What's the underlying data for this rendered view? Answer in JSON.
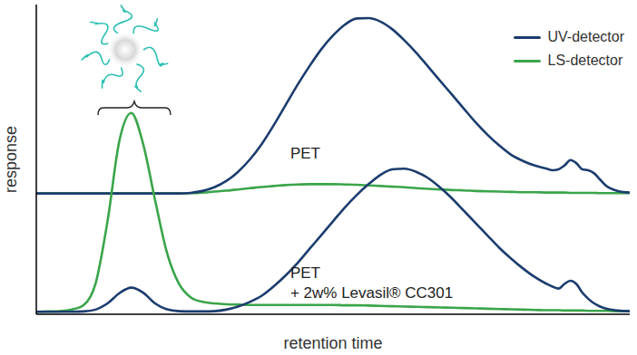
{
  "chart_data": {
    "type": "line",
    "x_label": "retention time",
    "y_label": "response",
    "xlim": [
      0,
      100
    ],
    "ylim": [
      0,
      100
    ],
    "tick_labels": false,
    "legend": "upper right",
    "x": [
      0,
      2,
      4,
      6,
      8,
      10,
      12,
      14,
      16,
      18,
      20,
      22,
      24,
      26,
      28,
      30,
      32,
      34,
      36,
      38,
      40,
      42,
      44,
      46,
      48,
      50,
      52,
      54,
      56,
      58,
      60,
      62,
      64,
      66,
      68,
      70,
      72,
      74,
      76,
      78,
      80,
      82,
      84,
      86,
      87,
      88,
      89,
      90,
      91,
      92,
      93,
      94,
      95,
      96,
      98,
      100
    ],
    "series": [
      {
        "name": "LS-detector",
        "color": "#3aa54a",
        "values": [
          39,
          39,
          39,
          39,
          39,
          39,
          39,
          39,
          39,
          39,
          39,
          39,
          39,
          39.1,
          39.3,
          39.6,
          39.9,
          40.3,
          40.7,
          41.1,
          41.4,
          41.7,
          41.9,
          42,
          42,
          42,
          41.9,
          41.8,
          41.6,
          41.4,
          41.2,
          41,
          40.7,
          40.5,
          40.3,
          40.1,
          40,
          39.8,
          39.7,
          39.6,
          39.5,
          39.4,
          39.4,
          39.3,
          39.3,
          39.3,
          39.3,
          39.2,
          39.2,
          39.2,
          39.2,
          39.2,
          39.1,
          39.1,
          39.1,
          39.1
        ]
      },
      {
        "name": "UV-detector",
        "color": "#1b3c6e",
        "values": [
          39,
          39,
          39,
          39,
          39,
          39,
          39,
          39,
          39,
          39,
          39,
          39,
          39,
          39.2,
          39.8,
          41,
          43,
          46,
          50,
          55,
          61,
          67.5,
          74,
          80,
          85.5,
          90,
          93.5,
          95.5,
          95.6,
          94.5,
          92,
          88.5,
          84.5,
          80,
          75.5,
          71,
          66.5,
          62,
          58,
          54.5,
          51.5,
          49.5,
          48,
          47,
          46.5,
          46.8,
          48,
          49.8,
          48.8,
          46.8,
          46.5,
          45.5,
          43.5,
          41.5,
          39.8,
          39.3
        ]
      },
      {
        "name": "LS-detector",
        "color": "#3aa54a",
        "values": [
          0.8,
          0.9,
          1,
          1.5,
          3,
          10,
          30,
          56,
          65,
          55,
          37,
          20,
          10,
          5.5,
          4,
          3.5,
          3.2,
          3.1,
          3,
          3,
          3,
          3,
          3,
          3,
          3,
          3,
          2.9,
          2.9,
          2.8,
          2.7,
          2.6,
          2.5,
          2.4,
          2.3,
          2.2,
          2.1,
          2,
          1.9,
          1.8,
          1.7,
          1.6,
          1.5,
          1.4,
          1.3,
          1.3,
          1.3,
          1.2,
          1.2,
          1.2,
          1.2,
          1.1,
          1.1,
          1.1,
          1.1,
          1,
          1
        ]
      },
      {
        "name": "UV-detector",
        "color": "#1b3c6e",
        "values": [
          0.8,
          0.8,
          0.8,
          0.8,
          0.9,
          1.5,
          3.5,
          6.8,
          8.6,
          7,
          3.5,
          1.6,
          1,
          0.9,
          0.9,
          1,
          1.5,
          2.5,
          4,
          6,
          9,
          12.5,
          16.5,
          21,
          25.5,
          30,
          34.5,
          38.5,
          42,
          45,
          46.8,
          47,
          46,
          44,
          41,
          37.5,
          33.5,
          29.5,
          25.5,
          21.5,
          18,
          14.8,
          12,
          9.8,
          8.9,
          8.3,
          9.8,
          10.8,
          9.8,
          7,
          5,
          3.5,
          2.5,
          1.8,
          1.2,
          1
        ]
      }
    ],
    "annotations": [
      {
        "text": [
          "PET"
        ],
        "x": 42.8,
        "y": 50.3
      },
      {
        "text": [
          "PET",
          "+ 2w% Levasil® CC301"
        ],
        "x": 42.8,
        "y": 11.7
      }
    ]
  }
}
